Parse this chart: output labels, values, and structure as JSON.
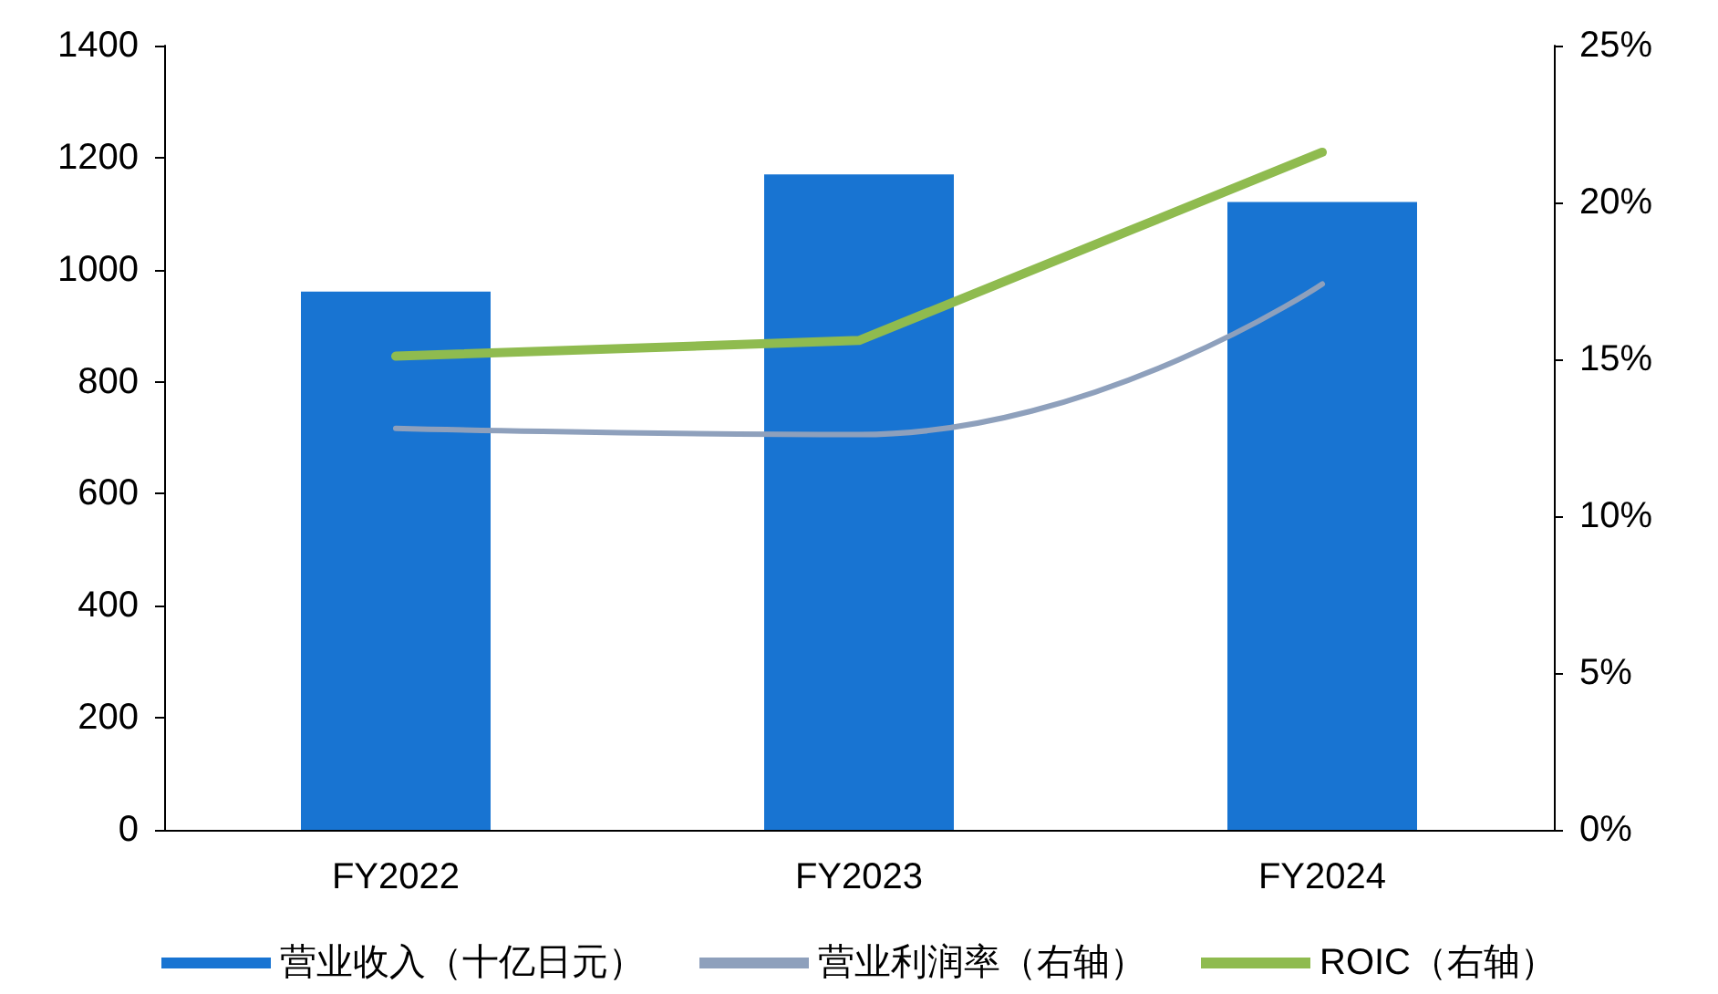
{
  "chart_data": {
    "type": "bar",
    "categories": [
      "FY2022",
      "FY2023",
      "FY2024"
    ],
    "series": [
      {
        "name": "营业收入（十亿日元）",
        "color": "#1874d2",
        "values": [
          961,
          1170,
          1121
        ]
      },
      {
        "name": "营业利润率（右轴）",
        "type": "line",
        "axis": "y2",
        "color": "#8ea0bc",
        "values": [
          12.8,
          12.6,
          17.4
        ]
      },
      {
        "name": "ROIC（右轴）",
        "type": "line",
        "axis": "y2",
        "color": "#8fbb4f",
        "values": [
          15.1,
          15.6,
          21.6
        ]
      }
    ],
    "ylim": [
      0,
      1400
    ],
    "yticks": [
      0,
      200,
      400,
      600,
      800,
      1000,
      1200,
      1400
    ],
    "y2lim": [
      0,
      25
    ],
    "y2ticks": [
      {
        "value": 0,
        "label": "0%"
      },
      {
        "value": 5,
        "label": "5%"
      },
      {
        "value": 10,
        "label": "10%"
      },
      {
        "value": 15,
        "label": "15%"
      },
      {
        "value": 20,
        "label": "20%"
      },
      {
        "value": 25,
        "label": "25%"
      }
    ],
    "grid": false,
    "legend": "bottom",
    "marker": "none"
  }
}
